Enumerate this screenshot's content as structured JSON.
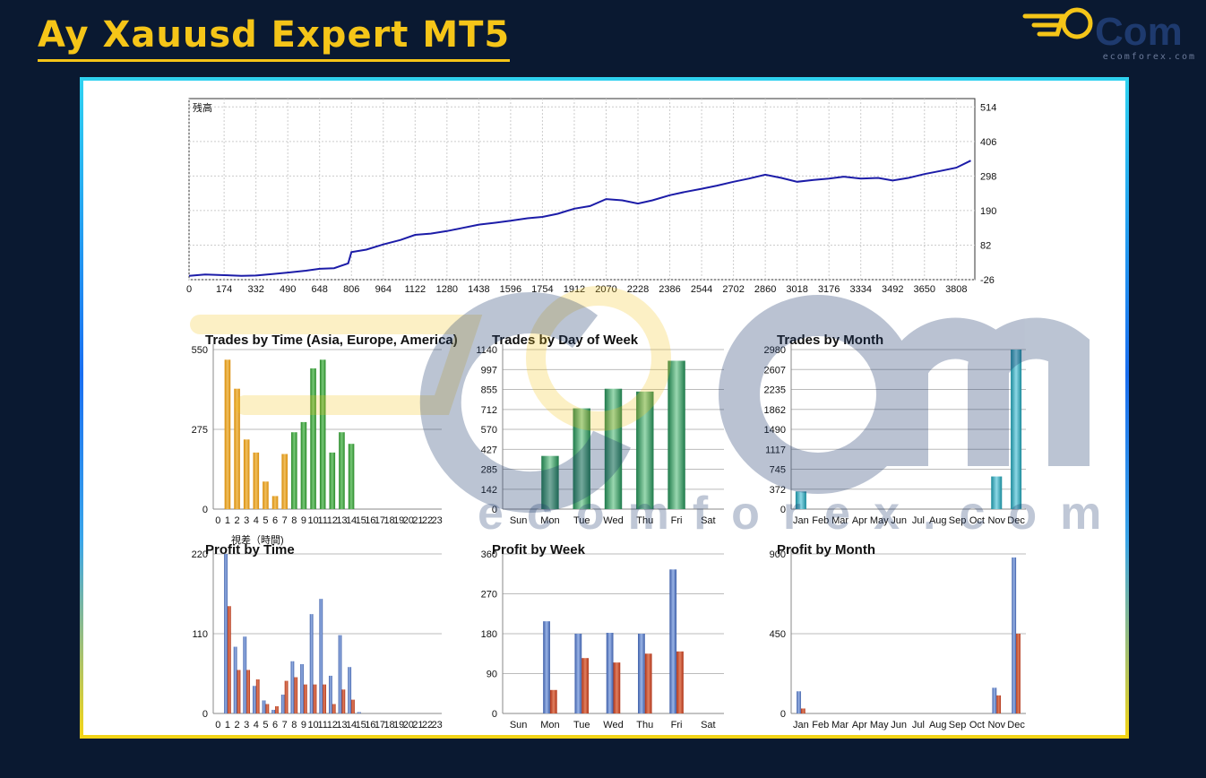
{
  "header": {
    "title": "Ay Xauusd Expert MT5"
  },
  "brand": {
    "logo_text": "Com",
    "site": "ecomforex.com",
    "watermark_text": "ecomforex.com"
  },
  "colors": {
    "background": "#0a1931",
    "title": "#f5c518",
    "balance_line": "#1c1ca8",
    "gold_bar": "#d98c0a",
    "green_bar": "#2a8a2a",
    "teal_bar": "#1a8a9a",
    "blue_bar": "#3d5ea8",
    "red_bar": "#b03418"
  },
  "chart_data": [
    {
      "type": "line",
      "title": "残高",
      "x_ticks": [
        "0",
        "174",
        "332",
        "490",
        "648",
        "806",
        "964",
        "1122",
        "1280",
        "1438",
        "1596",
        "1754",
        "1912",
        "2070",
        "2228",
        "2386",
        "2544",
        "2702",
        "2860",
        "3018",
        "3176",
        "3334",
        "3492",
        "3650",
        "3808"
      ],
      "y_ticks": [
        "514",
        "406",
        "298",
        "190",
        "82",
        "-26"
      ],
      "xlim": [
        0,
        3900
      ],
      "ylim": [
        -26,
        540
      ],
      "grid": true,
      "series": [
        {
          "x": [
            0,
            80,
            174,
            260,
            332,
            420,
            490,
            580,
            648,
            720,
            790,
            806,
            880,
            964,
            1050,
            1122,
            1200,
            1280,
            1360,
            1438,
            1520,
            1596,
            1680,
            1754,
            1830,
            1912,
            1990,
            2070,
            2150,
            2228,
            2300,
            2386,
            2460,
            2544,
            2620,
            2702,
            2780,
            2860,
            2940,
            3018,
            3100,
            3176,
            3250,
            3334,
            3420,
            3492,
            3570,
            3650,
            3730,
            3808,
            3880
          ],
          "y": [
            -14,
            -10,
            -12,
            -14,
            -13,
            -8,
            -4,
            2,
            8,
            10,
            25,
            60,
            68,
            84,
            98,
            114,
            118,
            126,
            136,
            146,
            152,
            158,
            166,
            170,
            180,
            196,
            204,
            226,
            222,
            212,
            222,
            238,
            248,
            258,
            268,
            280,
            290,
            302,
            292,
            280,
            286,
            290,
            296,
            290,
            292,
            284,
            292,
            304,
            314,
            324,
            346
          ]
        }
      ]
    },
    {
      "type": "bar",
      "title": "Trades by Time (Asia, Europe, America)",
      "categories": [
        "0",
        "1",
        "2",
        "3",
        "4",
        "5",
        "6",
        "7",
        "8",
        "9",
        "10",
        "11",
        "12",
        "13",
        "14",
        "15",
        "16",
        "17",
        "18",
        "19",
        "20",
        "21",
        "22",
        "23"
      ],
      "y_ticks": [
        "550",
        "275",
        "0"
      ],
      "ylim": [
        0,
        550
      ],
      "values": [
        0,
        515,
        415,
        240,
        195,
        95,
        45,
        190,
        265,
        300,
        485,
        515,
        195,
        265,
        225,
        0,
        0,
        0,
        0,
        0,
        0,
        0,
        0,
        0
      ],
      "bar_groups": [
        "gold",
        "gold",
        "gold",
        "gold",
        "gold",
        "gold",
        "gold",
        "gold",
        "green",
        "green",
        "green",
        "green",
        "green",
        "green",
        "green",
        "none",
        "none",
        "none",
        "none",
        "none",
        "none",
        "none",
        "none",
        "none"
      ],
      "footer_label": "視差（時間)"
    },
    {
      "type": "bar",
      "title": "Trades by Day of Week",
      "categories": [
        "Sun",
        "Mon",
        "Tue",
        "Wed",
        "Thu",
        "Fri",
        "Sat"
      ],
      "y_ticks": [
        "1140",
        "997",
        "855",
        "712",
        "570",
        "427",
        "285",
        "142",
        "0"
      ],
      "ylim": [
        0,
        1140
      ],
      "values": [
        0,
        380,
        720,
        860,
        840,
        1060,
        0
      ]
    },
    {
      "type": "bar",
      "title": "Trades by Month",
      "categories": [
        "Jan",
        "Feb",
        "Mar",
        "Apr",
        "May",
        "Jun",
        "Jul",
        "Aug",
        "Sep",
        "Oct",
        "Nov",
        "Dec"
      ],
      "y_ticks": [
        "2980",
        "2607",
        "2235",
        "1862",
        "1490",
        "1117",
        "745",
        "372",
        "0"
      ],
      "ylim": [
        0,
        2980
      ],
      "values": [
        330,
        0,
        0,
        0,
        0,
        0,
        0,
        0,
        0,
        0,
        610,
        2980
      ]
    },
    {
      "type": "bar",
      "title": "Profit by Time",
      "categories": [
        "0",
        "1",
        "2",
        "3",
        "4",
        "5",
        "6",
        "7",
        "8",
        "9",
        "10",
        "11",
        "12",
        "13",
        "14",
        "15",
        "16",
        "17",
        "18",
        "19",
        "20",
        "21",
        "22",
        "23"
      ],
      "y_ticks": [
        "220",
        "110",
        "0"
      ],
      "ylim": [
        0,
        220
      ],
      "series": [
        {
          "values": [
            0,
            220,
            92,
            106,
            38,
            18,
            5,
            26,
            72,
            68,
            137,
            158,
            52,
            108,
            64,
            2,
            0,
            0,
            0,
            0,
            0,
            0,
            0,
            0
          ]
        },
        {
          "values": [
            0,
            148,
            60,
            60,
            47,
            13,
            10,
            45,
            50,
            40,
            40,
            40,
            13,
            33,
            19,
            0,
            0,
            0,
            0,
            0,
            0,
            0,
            0,
            0
          ]
        }
      ]
    },
    {
      "type": "bar",
      "title": "Profit by Week",
      "categories": [
        "Sun",
        "Mon",
        "Tue",
        "Wed",
        "Thu",
        "Fri",
        "Sat"
      ],
      "y_ticks": [
        "360",
        "270",
        "180",
        "90",
        "0"
      ],
      "ylim": [
        0,
        360
      ],
      "series": [
        {
          "values": [
            0,
            208,
            180,
            182,
            180,
            325,
            0
          ]
        },
        {
          "values": [
            0,
            53,
            125,
            115,
            135,
            140,
            0
          ]
        }
      ]
    },
    {
      "type": "bar",
      "title": "Profit by Month",
      "categories": [
        "Jan",
        "Feb",
        "Mar",
        "Apr",
        "May",
        "Jun",
        "Jul",
        "Aug",
        "Sep",
        "Oct",
        "Nov",
        "Dec"
      ],
      "y_ticks": [
        "900",
        "450",
        "0"
      ],
      "ylim": [
        0,
        900
      ],
      "series": [
        {
          "values": [
            125,
            0,
            0,
            0,
            0,
            0,
            0,
            0,
            0,
            0,
            145,
            880
          ]
        },
        {
          "values": [
            28,
            0,
            0,
            0,
            0,
            0,
            0,
            0,
            0,
            0,
            102,
            450
          ]
        }
      ]
    }
  ]
}
